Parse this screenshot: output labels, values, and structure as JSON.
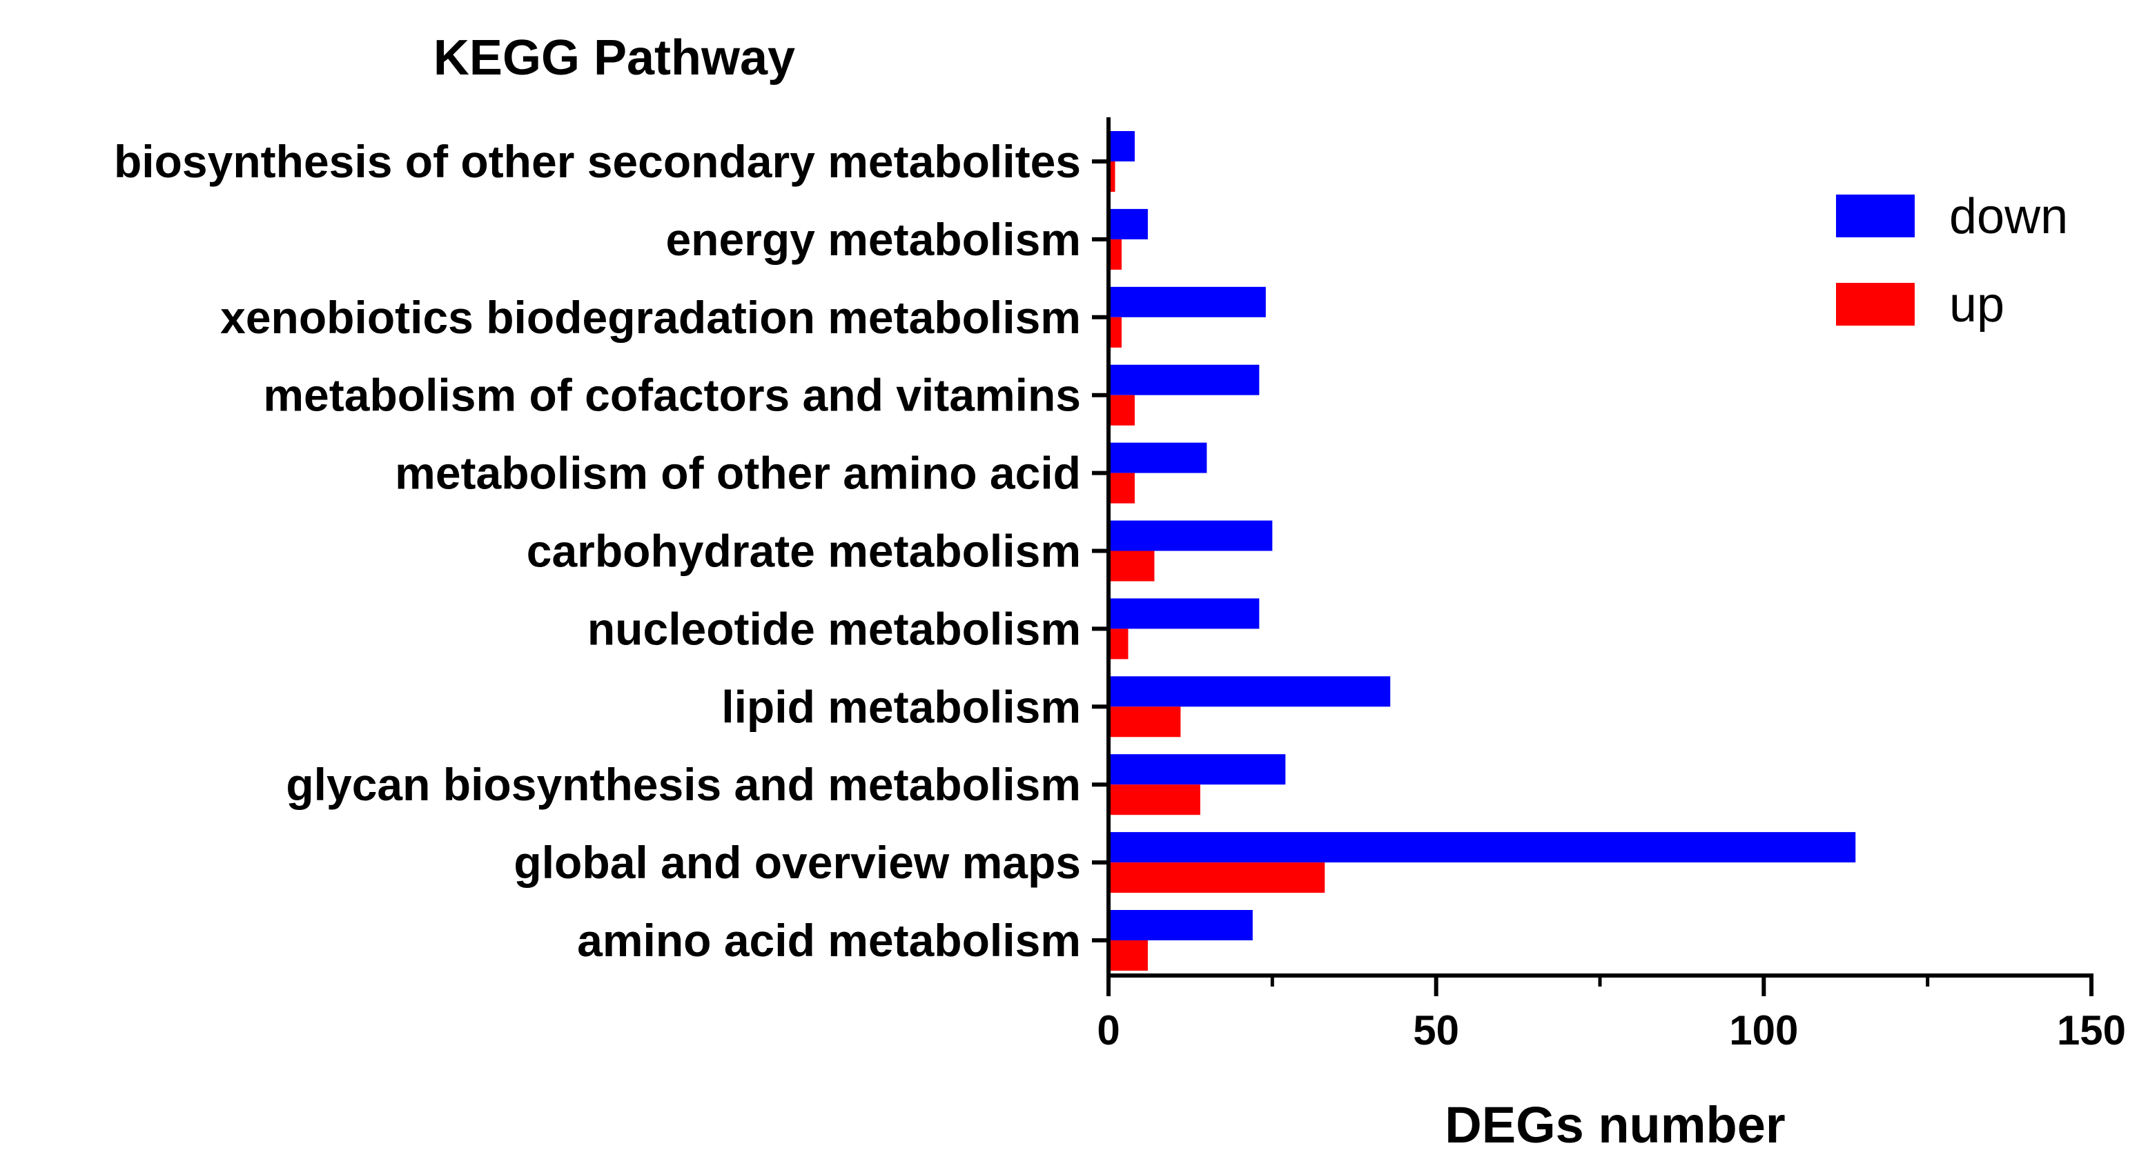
{
  "chart_data": {
    "type": "bar",
    "orientation": "horizontal",
    "title": "KEGG Pathway",
    "xlabel": "DEGs number",
    "ylabel": "",
    "xlim": [
      0,
      150
    ],
    "xticks": [
      0,
      50,
      100,
      150
    ],
    "xtick_labels": [
      "0",
      "50",
      "100",
      "150"
    ],
    "categories": [
      "biosynthesis of other secondary metabolites",
      "energy metabolism",
      "xenobiotics biodegradation metabolism",
      "metabolism of cofactors and vitamins",
      "metabolism of other amino acid",
      "carbohydrate metabolism",
      "nucleotide metabolism",
      "lipid metabolism",
      "glycan biosynthesis and metabolism",
      "global and overview maps",
      "amino acid metabolism"
    ],
    "series": [
      {
        "name": "down",
        "color": "#0000ff",
        "values": [
          4,
          6,
          24,
          23,
          15,
          25,
          23,
          43,
          27,
          114,
          22
        ]
      },
      {
        "name": "up",
        "color": "#ff0000",
        "values": [
          1,
          2,
          2,
          4,
          4,
          7,
          3,
          11,
          14,
          33,
          6
        ]
      }
    ],
    "legend_position": "top-right",
    "grid": false
  }
}
